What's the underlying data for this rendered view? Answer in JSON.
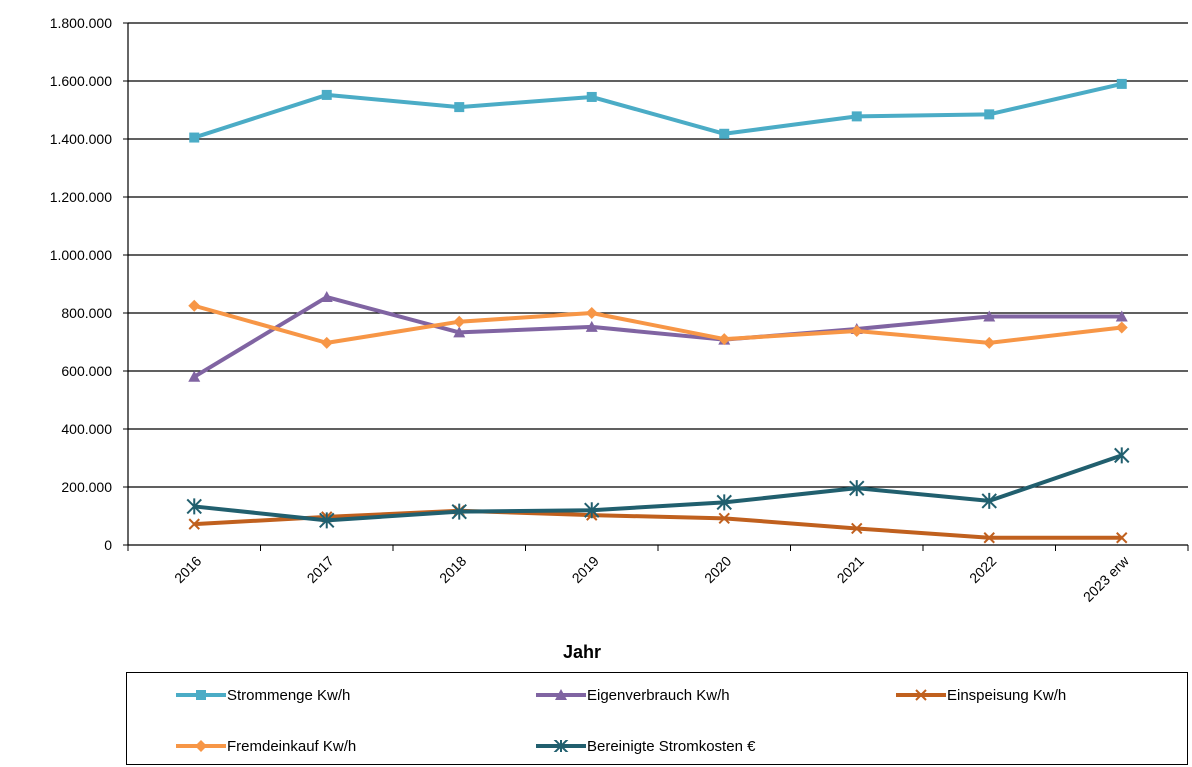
{
  "chart_data": {
    "type": "line",
    "xlabel": "Jahr",
    "categories": [
      "2016",
      "2017",
      "2018",
      "2019",
      "2020",
      "2021",
      "2022",
      "2023 erw"
    ],
    "ylim": [
      0,
      1800000
    ],
    "yticks": [
      0,
      200000,
      400000,
      600000,
      800000,
      1000000,
      1200000,
      1400000,
      1600000,
      1800000
    ],
    "ytick_labels": [
      "0",
      "200.000",
      "400.000",
      "600.000",
      "800.000",
      "1.000.000",
      "1.200.000",
      "1.400.000",
      "1.600.000",
      "1.800.000"
    ],
    "grid": "horizontal",
    "legend_position": "bottom",
    "series": [
      {
        "name": "Strommenge Kw/h",
        "color": "#4BACC6",
        "marker": "square",
        "values": [
          1405000,
          1552000,
          1510000,
          1545000,
          1418000,
          1478000,
          1485000,
          1590000
        ]
      },
      {
        "name": "Eigenverbrauch Kw/h",
        "color": "#8064A2",
        "marker": "triangle",
        "values": [
          580000,
          855000,
          733000,
          752000,
          708000,
          745000,
          788000,
          788000
        ]
      },
      {
        "name": "Einspeisung Kw/h",
        "color": "#C0601E",
        "marker": "x",
        "values": [
          72000,
          97000,
          118000,
          103000,
          92000,
          57000,
          25000,
          25000
        ]
      },
      {
        "name": "Fremdeinkauf Kw/h",
        "color": "#F79646",
        "marker": "diamond",
        "values": [
          825000,
          697000,
          770000,
          800000,
          710000,
          738000,
          697000,
          750000
        ]
      },
      {
        "name": "Bereinigte Stromkosten €",
        "color": "#215F6E",
        "marker": "star",
        "values": [
          133000,
          85000,
          115000,
          120000,
          147000,
          196000,
          152000,
          309000
        ]
      }
    ]
  }
}
